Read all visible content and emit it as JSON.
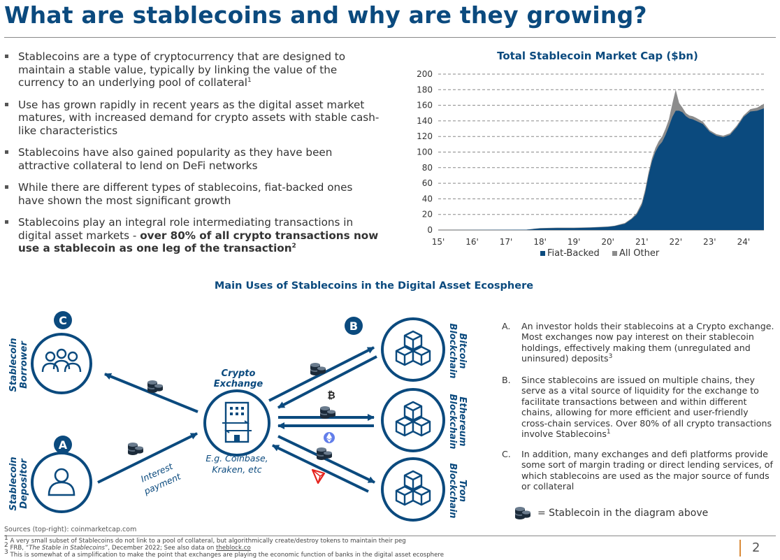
{
  "page": {
    "title": "What are stablecoins and why are they growing?",
    "page_number": "2"
  },
  "bullets": [
    {
      "text": "Stablecoins are a type of cryptocurrency that are designed to maintain a stable value, typically by linking the value of the currency to an underlying pool of collateral",
      "sup": "1",
      "bold": ""
    },
    {
      "text": "Use has grown rapidly in recent years as the digital asset market matures, with increased demand for crypto assets with stable cash-like characteristics",
      "sup": "",
      "bold": ""
    },
    {
      "text": "Stablecoins have also gained popularity as they have been attractive collateral to lend on DeFi networks",
      "sup": "",
      "bold": ""
    },
    {
      "text": "While there are different types of stablecoins, fiat-backed ones have shown the most significant growth",
      "sup": "",
      "bold": ""
    },
    {
      "text": "Stablecoins play an integral role intermediating transactions in digital asset markets - ",
      "sup": "",
      "bold": "over 80% of all crypto transactions now use a stablecoin as one leg of the transaction",
      "bold_sup": "2"
    }
  ],
  "chart_data": {
    "type": "area",
    "title": "Total Stablecoin Market Cap ($bn)",
    "xlabel": "",
    "ylabel": "",
    "ylim": [
      0,
      200
    ],
    "y_ticks": [
      "0",
      "20",
      "40",
      "60",
      "80",
      "100",
      "120",
      "140",
      "160",
      "180",
      "200"
    ],
    "x_tick_labels": [
      "15'",
      "16'",
      "17'",
      "18'",
      "19'",
      "20'",
      "21'",
      "22'",
      "23'",
      "24'"
    ],
    "x_tick_years": [
      2015,
      2016,
      2017,
      2018,
      2019,
      2020,
      2021,
      2022,
      2023,
      2024
    ],
    "grid": "horizontal dashed",
    "legend": "bottom",
    "stacked": true,
    "x": [
      2015.0,
      2017.6,
      2018.0,
      2018.5,
      2019.0,
      2019.5,
      2020.0,
      2020.2,
      2020.5,
      2020.7,
      2020.85,
      2021.0,
      2021.1,
      2021.2,
      2021.3,
      2021.4,
      2021.5,
      2021.6,
      2021.7,
      2021.8,
      2021.9,
      2022.0,
      2022.1,
      2022.2,
      2022.3,
      2022.4,
      2022.5,
      2022.6,
      2022.8,
      2023.0,
      2023.2,
      2023.4,
      2023.6,
      2023.8,
      2024.0,
      2024.2,
      2024.4,
      2024.6
    ],
    "series": [
      {
        "name": "Fiat-Backed",
        "color": "#0b4a7e",
        "values": [
          0,
          0.5,
          2,
          2.5,
          2.5,
          3,
          4,
          5,
          8,
          14,
          20,
          32,
          48,
          70,
          88,
          100,
          108,
          113,
          122,
          133,
          145,
          153,
          153,
          151,
          146,
          143,
          142,
          140,
          136,
          126,
          121,
          119,
          122,
          132,
          145,
          152,
          153,
          156
        ]
      },
      {
        "name": "All Other",
        "color": "#8c8c8c",
        "values": [
          0,
          0,
          0.5,
          0.5,
          0.5,
          0.5,
          0.5,
          0.5,
          1,
          1,
          2,
          3,
          4,
          4,
          4,
          5,
          6,
          7,
          8,
          9,
          17,
          27,
          10,
          6,
          4,
          4,
          4,
          4,
          3,
          2,
          2,
          2,
          2,
          2,
          2,
          3,
          4,
          6
        ]
      }
    ]
  },
  "diagram": {
    "title": "Main Uses of Stablecoins in the Digital Asset Ecosphere",
    "borrower_label": [
      "Stablecoin",
      "Borrower"
    ],
    "depositor_label": [
      "Stablecoin",
      "Depositor"
    ],
    "exchange_label": [
      "Crypto",
      "Exchange"
    ],
    "exchange_examples": [
      "E.g. Coinbase,",
      "Kraken, etc"
    ],
    "interest_label": [
      "Interest",
      "payment"
    ],
    "badge_c": "C",
    "badge_a": "A",
    "badge_b": "B",
    "chains": [
      {
        "line1": "Bitcoin",
        "line2": "Blockchain"
      },
      {
        "line1": "Ethereum",
        "line2": "Blockchain"
      },
      {
        "line1": "Tron",
        "line2": "Blockchain"
      }
    ],
    "primary_color": "#0b4a7e"
  },
  "notes": [
    {
      "letter": "A.",
      "text": "An investor holds their stablecoins at a Crypto exchange. Most exchanges now pay interest on their stablecoin holdings, effectively making them (unregulated and uninsured) deposits",
      "sup": "3"
    },
    {
      "letter": "B.",
      "text": "Since stablecoins are issued on multiple chains, they serve as a vital source of liquidity for the exchange to facilitate transactions between and within different chains, allowing for more efficient and user-friendly cross-chain services. Over 80% of all crypto transactions involve Stablecoins",
      "sup": "1"
    },
    {
      "letter": "C.",
      "text": "In addition, many exchanges and defi platforms provide some sort of margin trading or direct lending services, of which stablecoins are used as the major source of funds or collateral",
      "sup": ""
    }
  ],
  "legend_note": "= Stablecoin in the diagram above",
  "sources": "Sources (top-right): coinmarketcap.com",
  "footnotes": {
    "f1": "A very small subset of Stablecoins do not link to a pool of collateral, but algorithmically create/destroy tokens to maintain their peg",
    "f2_prefix": "FRB, “",
    "f2_title": "The Stable in Stablecoins",
    "f2_mid": "”, December 2022; See also data on ",
    "f2_link": "theblock.co",
    "f3": "This is somewhat of a simplification to make the point that exchanges are playing the economic function of banks in the digital asset ecosphere"
  }
}
